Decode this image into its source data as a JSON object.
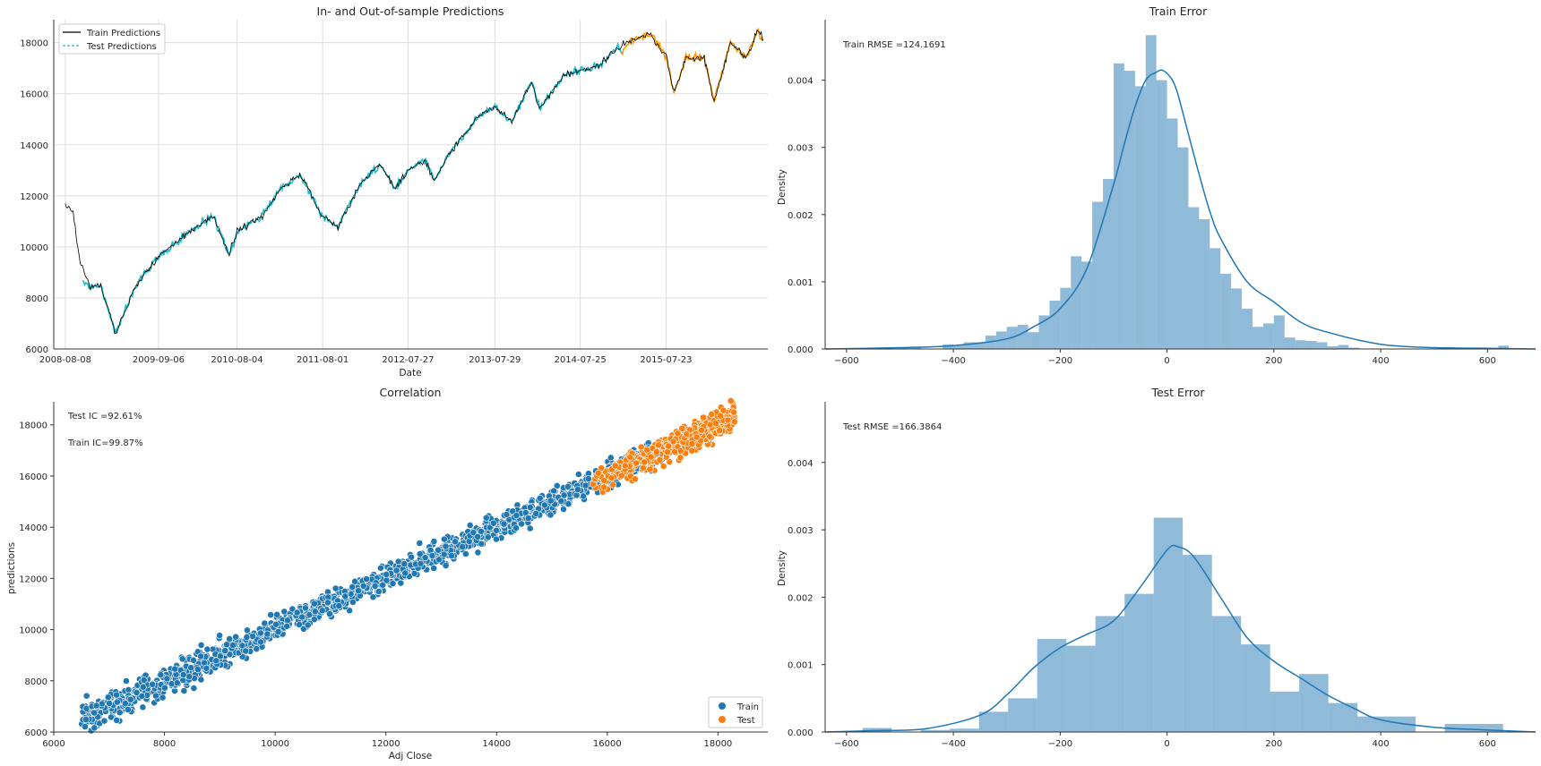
{
  "chart_data": [
    {
      "type": "line",
      "title": "In- and Out-of-sample Predictions",
      "xlabel": "Date",
      "ylabel": "",
      "grid": true,
      "legend_position": "top-left",
      "x_range": [
        "2008-06-20",
        "2016-09-25"
      ],
      "ylim": [
        6000,
        18900
      ],
      "x_ticks": [
        "2008-08-08",
        "2009-09-06",
        "2010-08-04",
        "2011-08-01",
        "2012-07-27",
        "2013-07-29",
        "2014-07-25",
        "2015-07-23"
      ],
      "y_ticks": [
        6000,
        8000,
        10000,
        12000,
        14000,
        16000,
        18000
      ],
      "series": [
        {
          "name": "Train Predictions",
          "color": "#000000",
          "style": "solid",
          "x": [
            "2008-08-08",
            "2008-09-10",
            "2008-10-10",
            "2008-11-20",
            "2009-01-05",
            "2009-03-09",
            "2009-06-01",
            "2009-09-06",
            "2010-01-15",
            "2010-04-25",
            "2010-07-02",
            "2010-08-04",
            "2010-11-15",
            "2011-02-15",
            "2011-05-01",
            "2011-08-01",
            "2011-10-05",
            "2012-01-15",
            "2012-04-02",
            "2012-06-04",
            "2012-07-27",
            "2012-10-05",
            "2012-11-15",
            "2013-01-15",
            "2013-05-20",
            "2013-07-29",
            "2013-10-09",
            "2013-12-31",
            "2014-02-03",
            "2014-05-15",
            "2014-07-25",
            "2014-10-15",
            "2014-12-31",
            "2015-03-01",
            "2015-05-19",
            "2015-07-23",
            "2015-08-25",
            "2015-10-15",
            "2015-12-31",
            "2016-02-11",
            "2016-04-20",
            "2016-06-27",
            "2016-08-15",
            "2016-09-06"
          ],
          "values": [
            11700,
            11300,
            9400,
            8400,
            8500,
            6600,
            8500,
            9600,
            10600,
            11200,
            9700,
            10600,
            11200,
            12400,
            12800,
            11200,
            10800,
            12600,
            13200,
            12300,
            13000,
            13400,
            12600,
            13600,
            15100,
            15500,
            14900,
            16500,
            15400,
            16700,
            16900,
            17100,
            17800,
            18100,
            18300,
            17500,
            16000,
            17400,
            17400,
            15700,
            18000,
            17400,
            18500,
            18100
          ]
        },
        {
          "name": "Test Predictions",
          "color": "#17becf",
          "style": "dashed",
          "x": [
            "2008-10-20",
            "2008-11-20",
            "2009-01-05",
            "2009-03-09",
            "2009-06-01",
            "2009-09-06",
            "2010-01-15",
            "2010-04-25",
            "2010-07-02",
            "2010-08-04",
            "2010-11-15",
            "2011-02-15",
            "2011-05-01",
            "2011-08-01",
            "2011-10-05",
            "2012-01-15",
            "2012-04-02",
            "2012-06-04",
            "2012-07-27",
            "2012-10-05",
            "2012-11-15",
            "2013-01-15",
            "2013-05-20",
            "2013-07-29",
            "2013-10-09",
            "2013-12-31",
            "2014-02-03",
            "2014-05-15",
            "2014-07-25",
            "2014-10-15",
            "2014-12-31",
            "2015-01-15"
          ],
          "values": [
            8700,
            8400,
            8500,
            6600,
            8500,
            9600,
            10600,
            11200,
            9700,
            10600,
            11200,
            12400,
            12800,
            11200,
            10800,
            12600,
            13200,
            12300,
            13000,
            13400,
            12600,
            13600,
            15100,
            15500,
            14900,
            16500,
            15400,
            16700,
            16900,
            17100,
            17800,
            17600
          ]
        },
        {
          "name": "",
          "color": "#ff9900",
          "style": "solid",
          "x": [
            "2015-01-15",
            "2015-03-01",
            "2015-05-19",
            "2015-07-23",
            "2015-08-25",
            "2015-10-15",
            "2015-12-31",
            "2016-02-11",
            "2016-04-20",
            "2016-06-27",
            "2016-08-15",
            "2016-09-06"
          ],
          "values": [
            17600,
            18100,
            18300,
            17500,
            16000,
            17400,
            17400,
            15700,
            18000,
            17400,
            18500,
            18100
          ]
        }
      ]
    },
    {
      "type": "bar",
      "subtype": "histogram",
      "title": "Train Error",
      "annotation": "Train RMSE =124.1691",
      "xlabel": "",
      "ylabel": "Density",
      "xlim": [
        -640,
        690
      ],
      "ylim": [
        0,
        0.0049
      ],
      "x_ticks": [
        -600,
        -400,
        -200,
        0,
        200,
        400,
        600
      ],
      "y_ticks": [
        "0.000",
        "0.001",
        "0.002",
        "0.003",
        "0.004"
      ],
      "bins_start": -500,
      "bin_width": 20,
      "values": [
        3e-05,
        2e-05,
        0.0,
        0.0,
        7e-05,
        6e-05,
        0.0001,
        0.0001,
        0.0002,
        0.00026,
        0.00033,
        0.00036,
        0.00025,
        0.0005,
        0.00072,
        0.00091,
        0.00138,
        0.0013,
        0.00219,
        0.00253,
        0.00425,
        0.00414,
        0.00391,
        0.00467,
        0.004,
        0.00343,
        0.003,
        0.00211,
        0.00193,
        0.0015,
        0.00112,
        0.0009,
        0.0006,
        0.00033,
        0.00038,
        0.0005,
        0.00017,
        0.00013,
        0.00012,
        0.0001,
        4e-05,
        6e-05,
        2e-05,
        0.0,
        0.0,
        0.0,
        0.0,
        0.0,
        0.0,
        0.0,
        0.0,
        3e-05,
        0.0,
        0.0,
        0.0,
        0.0,
        5e-05
      ],
      "kde_x": [
        -640,
        -500,
        -400,
        -300,
        -250,
        -200,
        -150,
        -100,
        -80,
        -60,
        -40,
        -20,
        -10,
        0,
        10,
        20,
        40,
        60,
        80,
        100,
        150,
        200,
        250,
        300,
        400,
        500,
        600,
        690
      ],
      "kde_y": [
        0,
        2e-05,
        5e-05,
        0.00015,
        0.00033,
        0.0006,
        0.0012,
        0.00245,
        0.00305,
        0.0036,
        0.004,
        0.00412,
        0.00415,
        0.0041,
        0.004,
        0.0038,
        0.0032,
        0.0026,
        0.00205,
        0.00165,
        0.001,
        0.0007,
        0.0004,
        0.00025,
        7e-05,
        2e-05,
        1e-05,
        0.0
      ]
    },
    {
      "type": "scatter",
      "title": "Correlation",
      "xlabel": "Adj Close",
      "ylabel": "predictions",
      "xlim": [
        6000,
        18900
      ],
      "ylim": [
        6000,
        18900
      ],
      "x_ticks": [
        6000,
        8000,
        10000,
        12000,
        14000,
        16000,
        18000
      ],
      "y_ticks": [
        6000,
        8000,
        10000,
        12000,
        14000,
        16000,
        18000
      ],
      "legend_position": "lower-right",
      "annotations": [
        "Test IC =92.61%",
        "Train IC=99.87%"
      ],
      "series": [
        {
          "name": "Train",
          "color": "#1f77b4",
          "x_range": [
            6500,
            17100
          ],
          "spread": 220
        },
        {
          "name": "Test",
          "color": "#ff7f0e",
          "x_range": [
            15700,
            18300
          ],
          "spread": 260
        }
      ]
    },
    {
      "type": "bar",
      "subtype": "histogram",
      "title": "Test Error",
      "annotation": "Test RMSE =166.3864",
      "xlabel": "",
      "ylabel": "Density",
      "xlim": [
        -640,
        690
      ],
      "ylim": [
        0,
        0.0049
      ],
      "x_ticks": [
        -600,
        -400,
        -200,
        0,
        200,
        400,
        600
      ],
      "y_ticks": [
        "0.000",
        "0.001",
        "0.002",
        "0.003",
        "0.004"
      ],
      "bins_start": -570,
      "bin_width": 54.5,
      "values": [
        6e-05,
        0.0,
        3e-05,
        5e-05,
        0.0003,
        0.0005,
        0.00138,
        0.00128,
        0.00172,
        0.00205,
        0.00318,
        0.00263,
        0.00172,
        0.0013,
        0.0006,
        0.00086,
        0.00043,
        0.00023,
        0.00023,
        0.0,
        0.00012,
        0.00012
      ],
      "kde_x": [
        -640,
        -550,
        -450,
        -350,
        -300,
        -250,
        -200,
        -150,
        -100,
        -50,
        0,
        20,
        50,
        100,
        150,
        200,
        250,
        300,
        350,
        400,
        500,
        600,
        690
      ],
      "kde_y": [
        0,
        2e-05,
        5e-05,
        0.00025,
        0.00055,
        0.00095,
        0.00125,
        0.00145,
        0.00165,
        0.00215,
        0.0027,
        0.00275,
        0.0026,
        0.002,
        0.0014,
        0.00105,
        0.0008,
        0.00055,
        0.00035,
        0.00018,
        7e-05,
        3e-05,
        0.0
      ]
    }
  ]
}
